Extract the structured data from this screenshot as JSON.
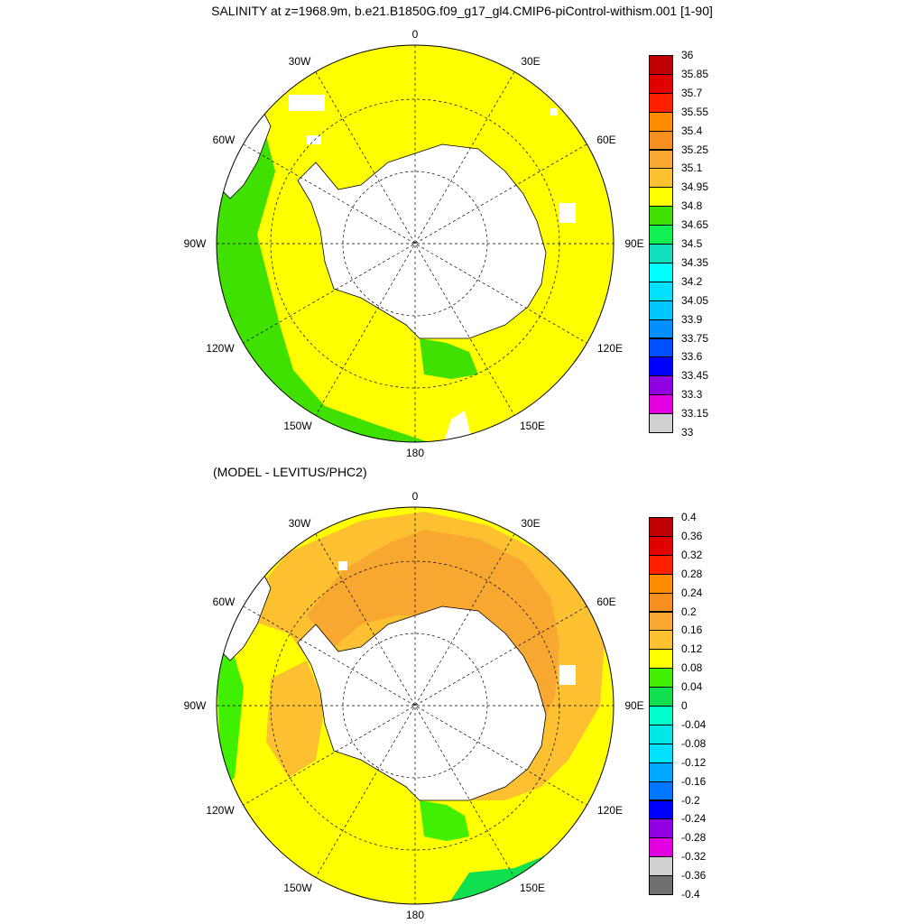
{
  "figure": {
    "title": "SALINITY at z=1968.9m, b.e21.B1850G.f09_g17_gl4.CMIP6-piControl-withism.001 [1-90]",
    "subtitle": "(MODEL - LEVITUS/PHC2)"
  },
  "map_labels": {
    "lon_0": "0",
    "lon_30e": "30E",
    "lon_60e": "60E",
    "lon_90e": "90E",
    "lon_120e": "120E",
    "lon_150e": "150E",
    "lon_180": "180",
    "lon_150w": "150W",
    "lon_120w": "120W",
    "lon_90w": "90W",
    "lon_60w": "60W",
    "lon_30w": "30W"
  },
  "colorbar_salinity": {
    "labels": [
      "36",
      "35.85",
      "35.7",
      "35.55",
      "35.4",
      "35.25",
      "35.1",
      "34.95",
      "34.8",
      "34.65",
      "34.5",
      "34.35",
      "34.2",
      "34.05",
      "33.9",
      "33.75",
      "33.6",
      "33.45",
      "33.3",
      "33.15",
      "33"
    ],
    "colors": [
      "#c00000",
      "#e00000",
      "#ff2000",
      "#ff8c00",
      "#f89020",
      "#f8a830",
      "#fcc030",
      "#ffff00",
      "#40e000",
      "#10f050",
      "#10e0c0",
      "#00ffff",
      "#00e0ff",
      "#00c8ff",
      "#0090ff",
      "#0050ff",
      "#0000ff",
      "#9000e0",
      "#e000e0",
      "#d0d0d0",
      "#707070"
    ]
  },
  "colorbar_diff": {
    "labels": [
      "0.4",
      "0.36",
      "0.32",
      "0.28",
      "0.24",
      "0.2",
      "0.16",
      "0.12",
      "0.08",
      "0.04",
      "0",
      "-0.04",
      "-0.08",
      "-0.12",
      "-0.16",
      "-0.2",
      "-0.24",
      "-0.28",
      "-0.32",
      "-0.36",
      "-0.4"
    ],
    "colors": [
      "#c00000",
      "#e00000",
      "#ff2000",
      "#ff8c00",
      "#f89020",
      "#f8a830",
      "#fcc030",
      "#ffff00",
      "#40f000",
      "#10e050",
      "#00ffcc",
      "#00e8e8",
      "#00e0ff",
      "#00a8ff",
      "#0078ff",
      "#0000ff",
      "#9000e0",
      "#e000e0",
      "#d0d0d0",
      "#707070"
    ]
  }
}
